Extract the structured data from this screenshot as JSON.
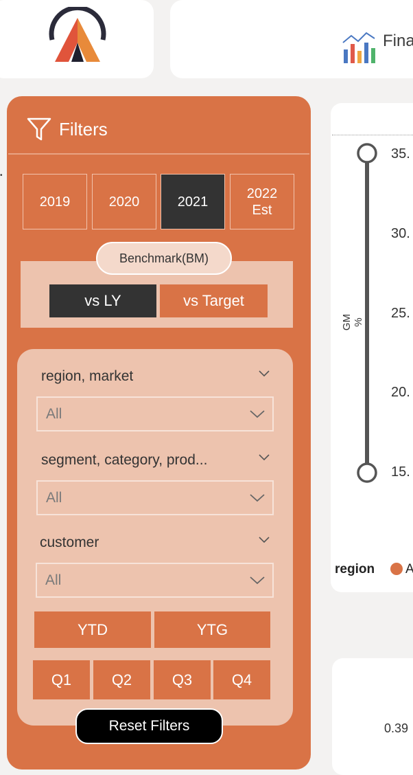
{
  "header": {
    "title_partial": "Fina",
    "logo_icon": "atliq-logo-icon",
    "title_icon": "finance-chart-icon"
  },
  "filters": {
    "title": "Filters",
    "icon": "funnel-icon",
    "years": [
      {
        "label": "2019",
        "selected": false
      },
      {
        "label": "2020",
        "selected": false
      },
      {
        "label": "2021",
        "selected": true
      },
      {
        "label": "2022 Est",
        "selected": false
      }
    ],
    "benchmark": {
      "label": "Benchmark(BM)",
      "options": [
        {
          "label": "vs LY",
          "selected": true
        },
        {
          "label": "vs Target",
          "selected": false
        }
      ]
    },
    "slicers": [
      {
        "label": "region, market",
        "value": "All"
      },
      {
        "label": "segment, category, prod...",
        "value": "All"
      },
      {
        "label": "customer",
        "value": "All"
      }
    ],
    "periods": [
      "YTD",
      "YTG"
    ],
    "quarters": [
      "Q1",
      "Q2",
      "Q3",
      "Q4"
    ],
    "reset_label": "Reset Filters"
  },
  "chart": {
    "axis_label": "GM %",
    "ticks": [
      "35.",
      "30.",
      "25.",
      "20.",
      "15."
    ],
    "slider": {
      "low": 15,
      "high": 35
    },
    "legend_title": "region",
    "legend_item": "A",
    "legend_color": "#d97346"
  },
  "bottom_card": {
    "value": "0.39"
  },
  "colors": {
    "accent": "#d97346",
    "selected": "#333333",
    "panel_light": "#edc3ae"
  }
}
